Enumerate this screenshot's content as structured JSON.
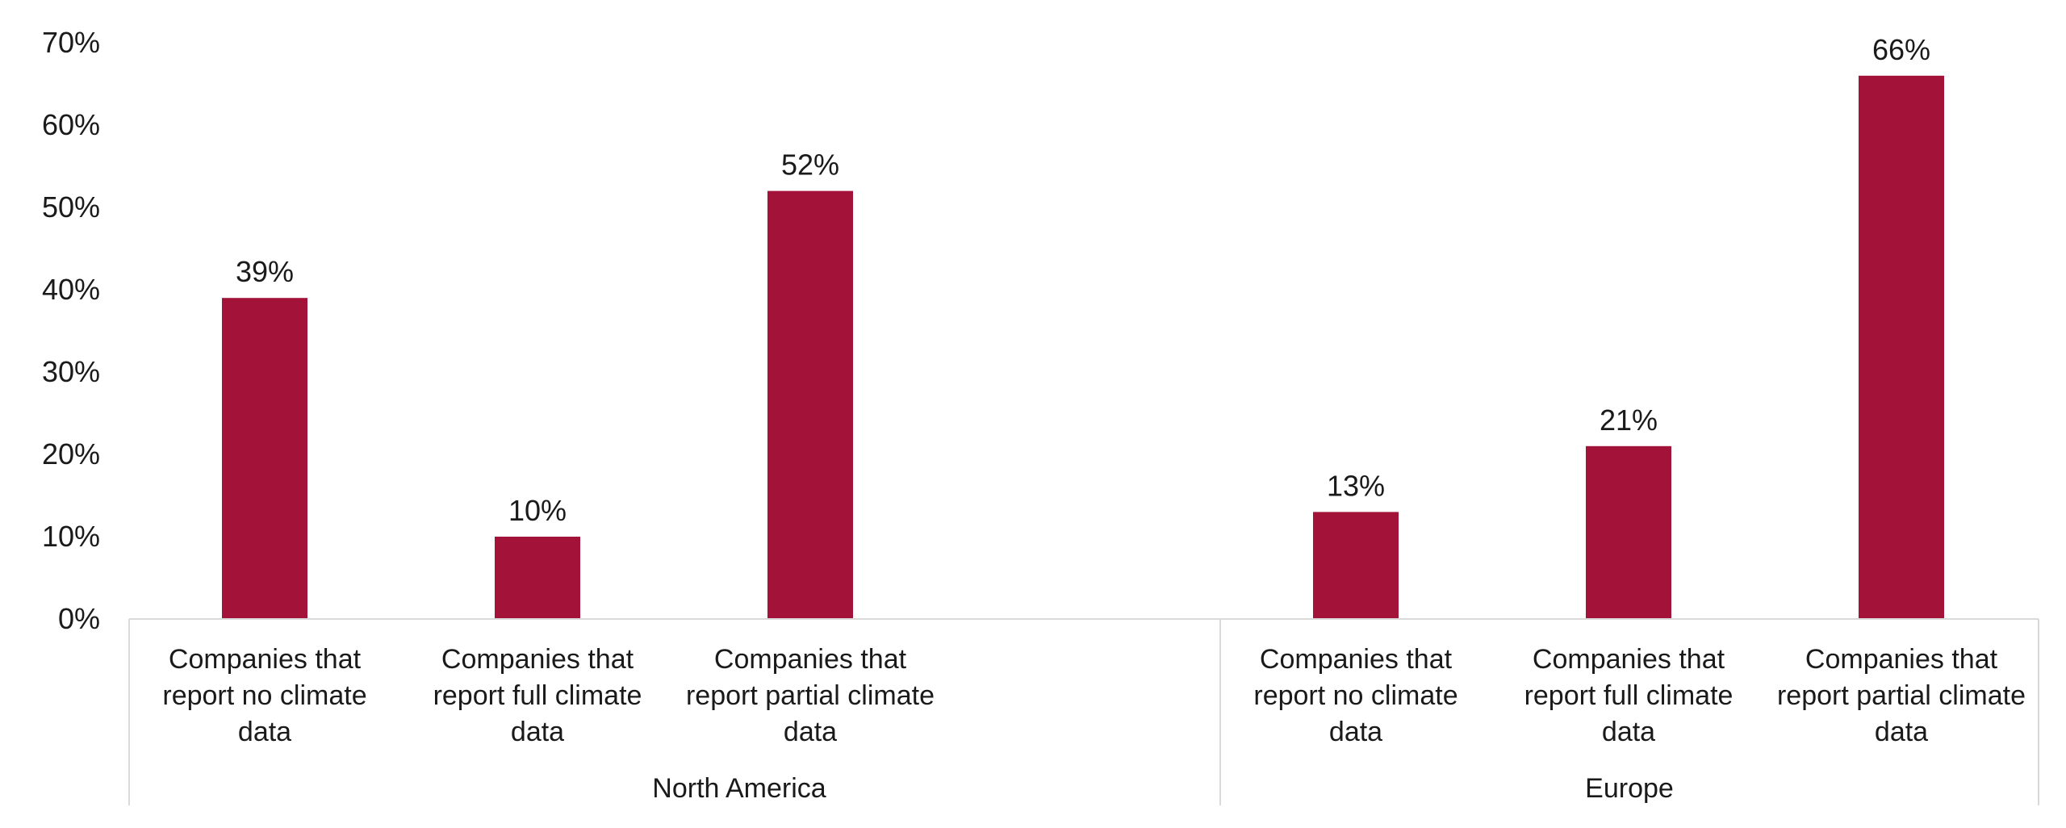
{
  "chart_data": {
    "type": "bar",
    "title": "",
    "xlabel": "",
    "ylabel": "",
    "ylim": [
      0,
      0.7
    ],
    "y_ticks": [
      "0%",
      "10%",
      "20%",
      "30%",
      "40%",
      "50%",
      "60%",
      "70%"
    ],
    "grid": false,
    "bar_color": "#a31239",
    "groups": [
      {
        "name": "North America",
        "categories": [
          "Companies that report no climate data",
          "Companies that report full climate data",
          "Companies that report partial climate data"
        ],
        "values": [
          0.39,
          0.1,
          0.52
        ],
        "data_labels": [
          "39%",
          "10%",
          "52%"
        ]
      },
      {
        "name": "Europe",
        "categories": [
          "Companies that report no climate data",
          "Companies that report full climate data",
          "Companies that report partial climate data"
        ],
        "values": [
          0.13,
          0.21,
          0.66
        ],
        "data_labels": [
          "13%",
          "21%",
          "66%"
        ]
      }
    ],
    "category_label_lines": [
      [
        "Companies that",
        "report no climate",
        "data"
      ],
      [
        "Companies that",
        "report full climate",
        "data"
      ],
      [
        "Companies that",
        "report partial climate",
        "data"
      ]
    ]
  }
}
